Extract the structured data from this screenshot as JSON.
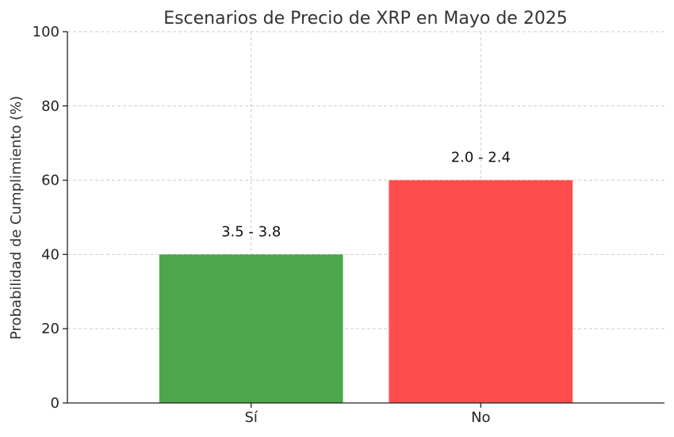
{
  "chart_data": {
    "type": "bar",
    "title": "Escenarios de Precio de XRP en Mayo de 2025",
    "xlabel": "",
    "ylabel": "Probabilidad de Cumplimiento (%)",
    "ylim": [
      0,
      100
    ],
    "yticks": [
      "0",
      "20",
      "40",
      "60",
      "80",
      "100"
    ],
    "categories": [
      "Sí",
      "No"
    ],
    "values": [
      40,
      60
    ],
    "bar_labels": [
      "3.5 - 3.8",
      "2.0 - 2.4"
    ],
    "colors": [
      "#4ca64c",
      "#ff4c4c"
    ],
    "grid": true,
    "legend": "none"
  }
}
